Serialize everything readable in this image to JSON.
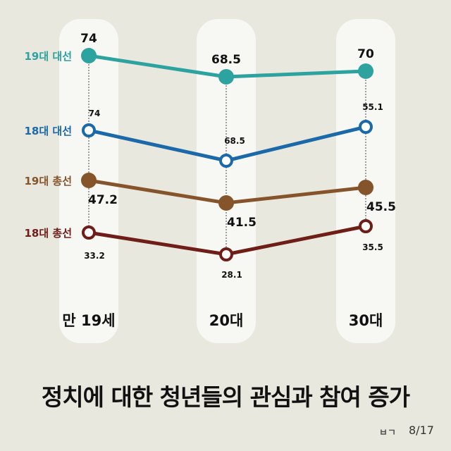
{
  "chart_data": {
    "type": "line",
    "categories": [
      "만 19세",
      "20대",
      "30대"
    ],
    "series": [
      {
        "name": "19대 대선",
        "values": [
          74,
          68.5,
          70
        ],
        "color": "#2ca39f",
        "marker": "filled",
        "labels": [
          "74",
          "68.5",
          "70"
        ]
      },
      {
        "name": "18대 대선",
        "values": [
          74,
          68.5,
          55.1
        ],
        "color": "#1b69a8",
        "marker": "hollow",
        "labels": [
          "74",
          "68.5",
          "55.1"
        ]
      },
      {
        "name": "19대 총선",
        "values": [
          47.2,
          41.5,
          45.5
        ],
        "color": "#86542a",
        "marker": "filled",
        "labels": [
          "47.2",
          "41.5",
          "45.5"
        ]
      },
      {
        "name": "18대 총선",
        "values": [
          33.2,
          28.1,
          35.5
        ],
        "color": "#6e1d17",
        "marker": "hollow",
        "labels": [
          "33.2",
          "28.1",
          "35.5"
        ]
      }
    ]
  },
  "caption": "정치에 대한 청년들의 관심과 참여 증가",
  "footer": {
    "logo": "ㅂㄱ",
    "page": "8/17"
  }
}
